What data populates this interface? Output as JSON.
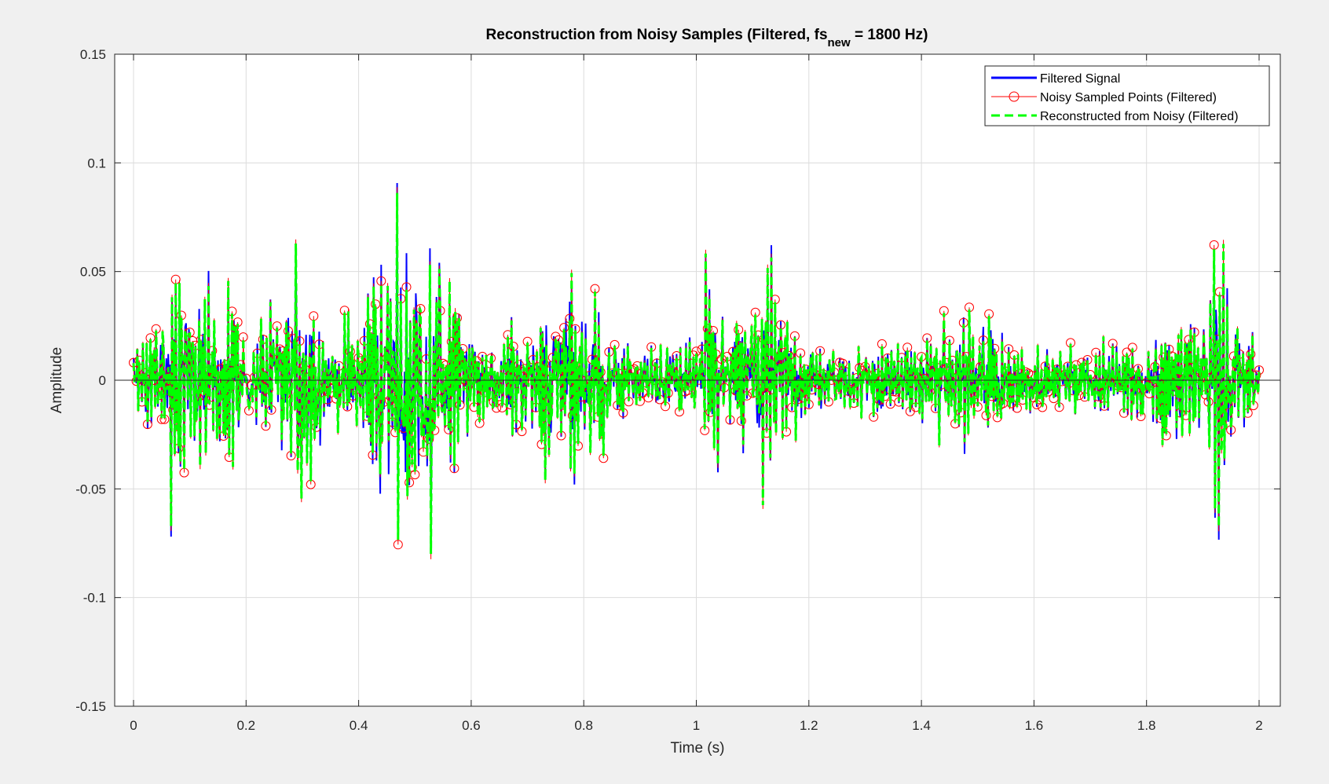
{
  "chart_data": {
    "type": "line",
    "title": "Reconstruction from Noisy Samples (Filtered, fs",
    "title_subscript": "new",
    "title_suffix": " = 1800 Hz)",
    "xlabel": "Time (s)",
    "ylabel": "Amplitude",
    "xlim": [
      0,
      2
    ],
    "ylim": [
      -0.15,
      0.15
    ],
    "xticks": [
      0,
      0.2,
      0.4,
      0.6,
      0.8,
      1,
      1.2,
      1.4,
      1.6,
      1.8,
      2
    ],
    "xtick_labels": [
      "0",
      "0.2",
      "0.4",
      "0.6",
      "0.8",
      "1",
      "1.2",
      "1.4",
      "1.6",
      "1.8",
      "2"
    ],
    "yticks": [
      -0.15,
      -0.1,
      -0.05,
      0,
      0.05,
      0.1,
      0.15
    ],
    "ytick_labels": [
      "-0.15",
      "-0.1",
      "-0.05",
      "0",
      "0.05",
      "0.1",
      "0.15"
    ],
    "grid": true,
    "legend_position": "top-right",
    "series": [
      {
        "name": "Filtered Signal",
        "color": "#0000ff",
        "style": "solid line"
      },
      {
        "name": "Noisy Sampled Points (Filtered)",
        "color": "#ff0000",
        "style": "line with circle markers"
      },
      {
        "name": "Reconstructed from Noisy (Filtered)",
        "color": "#00ff00",
        "style": "dashed line"
      }
    ],
    "envelope": {
      "t": [
        0,
        0.03,
        0.06,
        0.08,
        0.1,
        0.13,
        0.16,
        0.19,
        0.22,
        0.26,
        0.29,
        0.31,
        0.34,
        0.37,
        0.4,
        0.43,
        0.46,
        0.49,
        0.52,
        0.55,
        0.58,
        0.62,
        0.66,
        0.7,
        0.74,
        0.78,
        0.8,
        0.83,
        0.87,
        0.92,
        0.96,
        1,
        1.02,
        1.04,
        1.06,
        1.09,
        1.12,
        1.14,
        1.17,
        1.2,
        1.25,
        1.3,
        1.35,
        1.4,
        1.45,
        1.48,
        1.51,
        1.54,
        1.57,
        1.6,
        1.65,
        1.7,
        1.75,
        1.8,
        1.83,
        1.85,
        1.87,
        1.89,
        1.91,
        1.93,
        1.95,
        1.97,
        2
      ],
      "amplitude": [
        0.02,
        0.03,
        0.055,
        0.07,
        0.05,
        0.045,
        0.045,
        0.04,
        0.03,
        0.05,
        0.08,
        0.06,
        0.035,
        0.025,
        0.04,
        0.07,
        0.09,
        0.1,
        0.1,
        0.075,
        0.04,
        0.025,
        0.025,
        0.03,
        0.05,
        0.07,
        0.075,
        0.04,
        0.022,
        0.02,
        0.02,
        0.03,
        0.06,
        0.05,
        0.03,
        0.055,
        0.075,
        0.06,
        0.03,
        0.02,
        0.02,
        0.02,
        0.02,
        0.025,
        0.03,
        0.04,
        0.045,
        0.035,
        0.02,
        0.018,
        0.018,
        0.02,
        0.02,
        0.025,
        0.045,
        0.055,
        0.035,
        0.03,
        0.06,
        0.085,
        0.065,
        0.03,
        0.022
      ]
    }
  }
}
